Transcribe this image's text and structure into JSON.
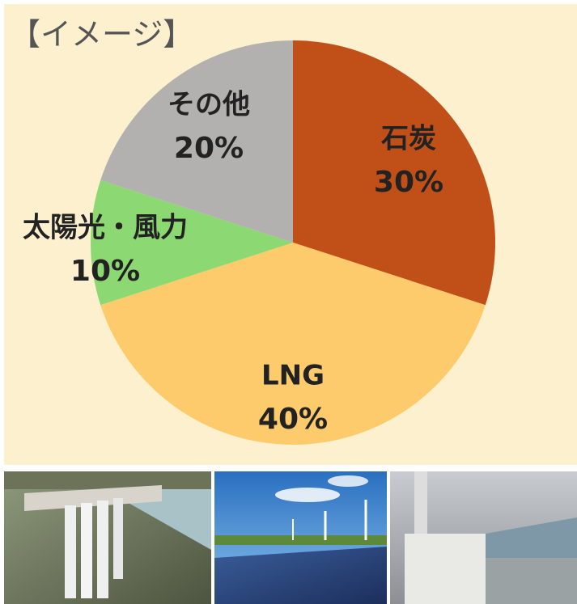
{
  "chart_data": {
    "type": "pie",
    "title": "【イメージ】",
    "categories": [
      "石炭",
      "LNG",
      "太陽光・風力",
      "その他"
    ],
    "values": [
      30,
      40,
      10,
      20
    ],
    "value_labels": [
      "30%",
      "40%",
      "10%",
      "20%"
    ],
    "colors": [
      "#c15018",
      "#fdcb6c",
      "#8cd872",
      "#b2b1af"
    ]
  }
}
